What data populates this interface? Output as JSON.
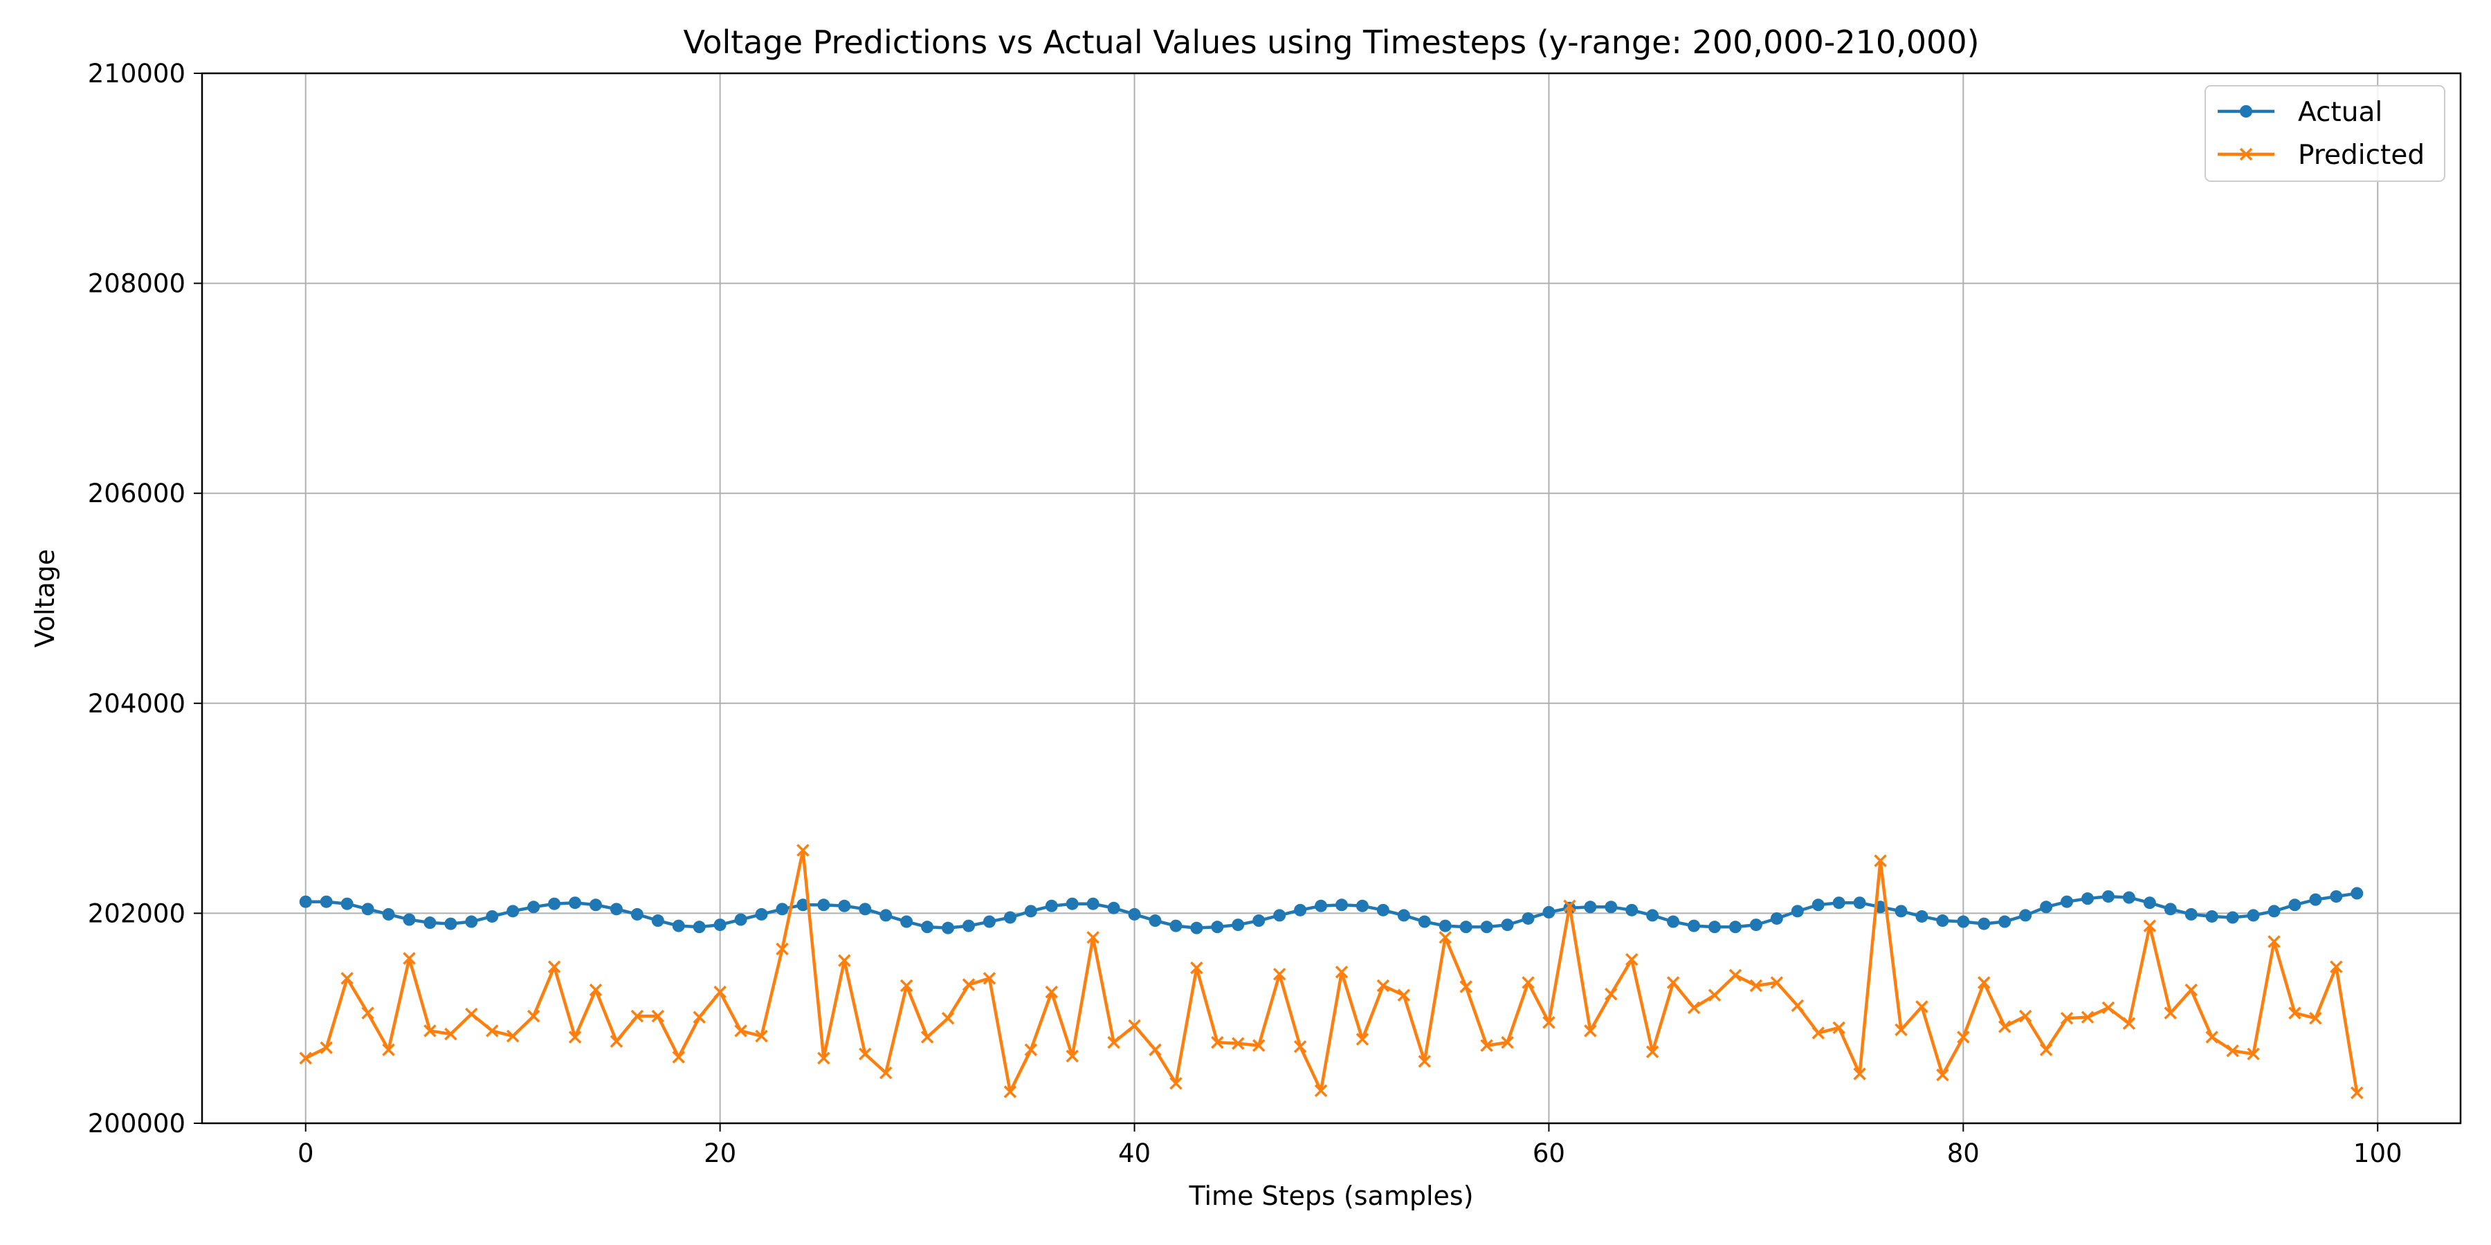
{
  "colors": {
    "actual": "#1f77b4",
    "predicted": "#ff7f0e",
    "grid": "#b0b0b0"
  },
  "chart_data": {
    "type": "line",
    "title": "Voltage Predictions vs Actual Values using Timesteps (y-range: 200,000-210,000)",
    "xlabel": "Time Steps (samples)",
    "ylabel": "Voltage",
    "xlim": [
      -5,
      104
    ],
    "ylim": [
      200000,
      210000
    ],
    "xticks": [
      0,
      20,
      40,
      60,
      80,
      100
    ],
    "yticks": [
      200000,
      202000,
      204000,
      206000,
      208000,
      210000
    ],
    "grid": true,
    "legend": "top-right",
    "x": [
      0,
      1,
      2,
      3,
      4,
      5,
      6,
      7,
      8,
      9,
      10,
      11,
      12,
      13,
      14,
      15,
      16,
      17,
      18,
      19,
      20,
      21,
      22,
      23,
      24,
      25,
      26,
      27,
      28,
      29,
      30,
      31,
      32,
      33,
      34,
      35,
      36,
      37,
      38,
      39,
      40,
      41,
      42,
      43,
      44,
      45,
      46,
      47,
      48,
      49,
      50,
      51,
      52,
      53,
      54,
      55,
      56,
      57,
      58,
      59,
      60,
      61,
      62,
      63,
      64,
      65,
      66,
      67,
      68,
      69,
      70,
      71,
      72,
      73,
      74,
      75,
      76,
      77,
      78,
      79,
      80,
      81,
      82,
      83,
      84,
      85,
      86,
      87,
      88,
      89,
      90,
      91,
      92,
      93,
      94,
      95,
      96,
      97,
      98,
      99
    ],
    "series": [
      {
        "name": "Actual",
        "color": "#1f77b4",
        "marker": "circle",
        "values": [
          202110,
          202110,
          202090,
          202040,
          201990,
          201940,
          201910,
          201900,
          201920,
          201970,
          202020,
          202060,
          202090,
          202100,
          202080,
          202040,
          201990,
          201930,
          201880,
          201870,
          201890,
          201940,
          201990,
          202040,
          202080,
          202080,
          202070,
          202040,
          201980,
          201920,
          201870,
          201860,
          201880,
          201920,
          201960,
          202020,
          202070,
          202090,
          202090,
          202050,
          201990,
          201930,
          201880,
          201860,
          201870,
          201890,
          201930,
          201980,
          202030,
          202070,
          202080,
          202070,
          202030,
          201980,
          201920,
          201880,
          201870,
          201870,
          201890,
          201950,
          202010,
          202050,
          202060,
          202060,
          202030,
          201980,
          201920,
          201880,
          201870,
          201870,
          201890,
          201950,
          202020,
          202080,
          202100,
          202100,
          202060,
          202020,
          201970,
          201930,
          201920,
          201900,
          201920,
          201980,
          202060,
          202110,
          202140,
          202160,
          202150,
          202100,
          202040,
          201990,
          201970,
          201960,
          201980,
          202020,
          202080,
          202130,
          202160,
          202190
        ]
      },
      {
        "name": "Predicted",
        "color": "#ff7f0e",
        "marker": "x",
        "values": [
          200620,
          200720,
          201380,
          201050,
          200700,
          201570,
          200880,
          200850,
          201040,
          200880,
          200830,
          201020,
          201490,
          200820,
          201270,
          200780,
          201020,
          201020,
          200630,
          201010,
          201250,
          200880,
          200830,
          201660,
          202600,
          200620,
          201550,
          200660,
          200480,
          201310,
          200820,
          201000,
          201320,
          201380,
          200300,
          200700,
          201250,
          200640,
          201770,
          200770,
          200930,
          200700,
          200380,
          201480,
          200770,
          200760,
          200740,
          201420,
          200730,
          200310,
          201440,
          200800,
          201310,
          201220,
          200590,
          201770,
          201300,
          200740,
          200770,
          201340,
          200960,
          202070,
          200880,
          201230,
          201560,
          200680,
          201340,
          201100,
          201220,
          201410,
          201310,
          201340,
          201120,
          200860,
          200910,
          200470,
          202500,
          200890,
          201110,
          200460,
          200820,
          201340,
          200920,
          201020,
          200700,
          201000,
          201010,
          201100,
          200950,
          201880,
          201050,
          201270,
          200820,
          200690,
          200660,
          201730,
          201050,
          201000,
          201490,
          200290
        ]
      }
    ]
  }
}
